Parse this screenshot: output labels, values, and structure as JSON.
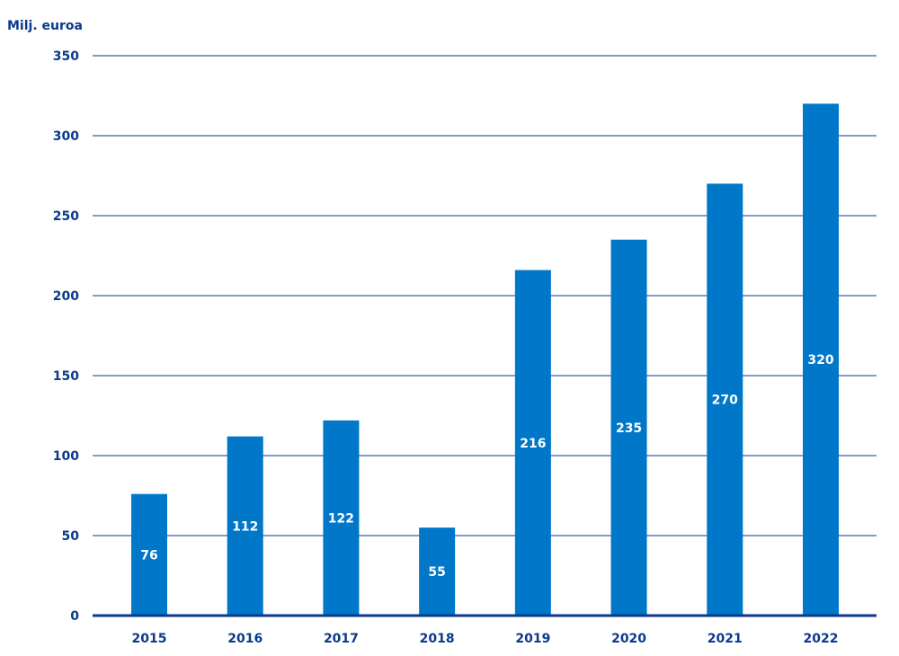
{
  "chart_data": {
    "type": "bar",
    "ylabel": "Milj. euroa",
    "categories": [
      "2015",
      "2016",
      "2017",
      "2018",
      "2019",
      "2020",
      "2021",
      "2022"
    ],
    "values": [
      76,
      112,
      122,
      55,
      216,
      235,
      270,
      320
    ],
    "ylim": [
      0,
      350
    ],
    "yticks": [
      "0",
      "50",
      "100",
      "150",
      "200",
      "250",
      "300",
      "350"
    ],
    "data_labels": [
      "76",
      "112",
      "122",
      "55",
      "216",
      "235",
      "270",
      "320"
    ],
    "grid": true,
    "colors": {
      "bar": "#0077c8",
      "axis": "#0a3a8c",
      "text": "#0a3a8c",
      "label": "#ffffff"
    }
  }
}
